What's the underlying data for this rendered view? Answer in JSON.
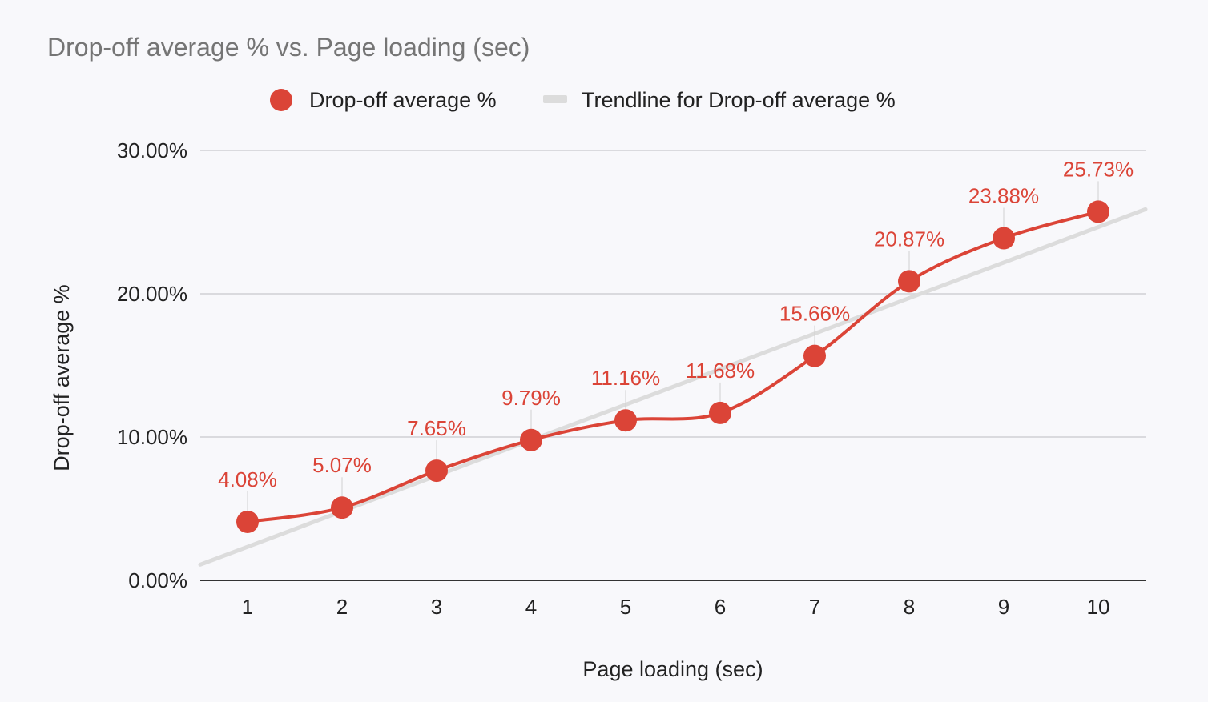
{
  "chart_data": {
    "type": "line",
    "title": "Drop-off average % vs. Page loading (sec)",
    "xlabel": "Page loading (sec)",
    "ylabel": "Drop-off average %",
    "x": [
      1,
      2,
      3,
      4,
      5,
      6,
      7,
      8,
      9,
      10
    ],
    "ylim": [
      0,
      30
    ],
    "yticks": [
      0,
      10,
      20,
      30
    ],
    "ytick_labels": [
      "0.00%",
      "10.00%",
      "20.00%",
      "30.00%"
    ],
    "grid": true,
    "legend_position": "top",
    "series": [
      {
        "name": "Drop-off average %",
        "color": "#db4437",
        "values": [
          4.08,
          5.07,
          7.65,
          9.79,
          11.16,
          11.68,
          15.66,
          20.87,
          23.88,
          25.73
        ],
        "labels": [
          "4.08%",
          "5.07%",
          "7.65%",
          "9.79%",
          "11.16%",
          "11.68%",
          "15.66%",
          "20.87%",
          "23.88%",
          "25.73%"
        ]
      }
    ],
    "trendline": {
      "name": "Trendline for Drop-off average %",
      "color": "#dcdcdc",
      "type": "linear",
      "x_range": [
        0.5,
        10.5
      ],
      "y_at_range": [
        1.1,
        25.9
      ]
    }
  }
}
